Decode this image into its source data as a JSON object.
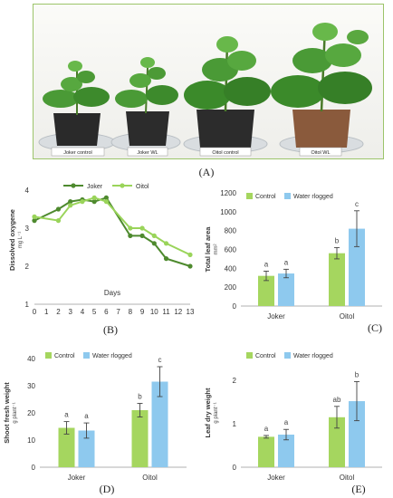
{
  "panel_labels": {
    "a": "(A)",
    "b": "(B)",
    "c": "(C)",
    "d": "(D)",
    "e": "(E)"
  },
  "photo": {
    "pot_labels": [
      "Joker control",
      "Joker WL",
      "Oitol control",
      "Oitol WL"
    ]
  },
  "colors": {
    "control": "#a5d65f",
    "waterlogged": "#8ec9ee",
    "joker_line": "#4e8a2e",
    "oitol_line": "#9ad45a"
  },
  "chart_data": [
    {
      "id": "B",
      "type": "line",
      "ylabel": "Dissolved oxygene",
      "yunit": "mg L⁻¹",
      "xlabel": "Days",
      "x": [
        0,
        1,
        2,
        3,
        4,
        5,
        6,
        7,
        8,
        9,
        10,
        11,
        12,
        13
      ],
      "ylim": [
        1,
        4
      ],
      "yticks": [
        1,
        2,
        3,
        4
      ],
      "legend_position": "top",
      "series": [
        {
          "name": "Joker",
          "x": [
            0,
            2,
            3,
            4,
            5,
            6,
            8,
            9,
            10,
            11,
            13
          ],
          "values": [
            3.2,
            3.5,
            3.7,
            3.75,
            3.7,
            3.8,
            2.8,
            2.8,
            2.6,
            2.2,
            2.0
          ]
        },
        {
          "name": "Oitol",
          "x": [
            0,
            2,
            3,
            4,
            5,
            6,
            8,
            9,
            10,
            11,
            13
          ],
          "values": [
            3.3,
            3.2,
            3.6,
            3.7,
            3.8,
            3.7,
            3.0,
            3.0,
            2.8,
            2.6,
            2.3
          ]
        }
      ]
    },
    {
      "id": "C",
      "type": "bar",
      "ylabel": "Total leaf area",
      "yunit": "mm²",
      "categories": [
        "Joker",
        "Oitol"
      ],
      "ylim": [
        0,
        1200
      ],
      "yticks": [
        0,
        200,
        400,
        600,
        800,
        1000,
        1200
      ],
      "legend_position": "top-left",
      "series": [
        {
          "name": "Control",
          "values": [
            320,
            560
          ],
          "errors": [
            50,
            60
          ],
          "letters": [
            "a",
            "b"
          ]
        },
        {
          "name": "Water rlogged",
          "values": [
            345,
            820
          ],
          "errors": [
            45,
            190
          ],
          "letters": [
            "a",
            "c"
          ]
        }
      ]
    },
    {
      "id": "D",
      "type": "bar",
      "ylabel": "Shoot fresh weight",
      "yunit": "g plant⁻¹",
      "categories": [
        "Joker",
        "Oitol"
      ],
      "ylim": [
        0,
        40
      ],
      "yticks": [
        0,
        10,
        20,
        30,
        40
      ],
      "legend_position": "top-left",
      "series": [
        {
          "name": "Control",
          "values": [
            14.5,
            21
          ],
          "errors": [
            2.3,
            2.5
          ],
          "letters": [
            "a",
            "b"
          ]
        },
        {
          "name": "Water rlogged",
          "values": [
            13.5,
            31.5
          ],
          "errors": [
            2.8,
            5.5
          ],
          "letters": [
            "a",
            "c"
          ]
        }
      ]
    },
    {
      "id": "E",
      "type": "bar",
      "ylabel": "Leaf dry weight",
      "yunit": "g plant⁻¹",
      "categories": [
        "Joker",
        "Oitol"
      ],
      "ylim": [
        0,
        2.5
      ],
      "yticks": [
        0,
        1,
        2
      ],
      "legend_position": "top-left",
      "series": [
        {
          "name": "Control",
          "values": [
            0.7,
            1.15
          ],
          "errors": [
            0.03,
            0.25
          ],
          "letters": [
            "a",
            "ab"
          ]
        },
        {
          "name": "Water rlogged",
          "values": [
            0.75,
            1.52
          ],
          "errors": [
            0.12,
            0.45
          ],
          "letters": [
            "a",
            "b"
          ]
        }
      ]
    }
  ]
}
